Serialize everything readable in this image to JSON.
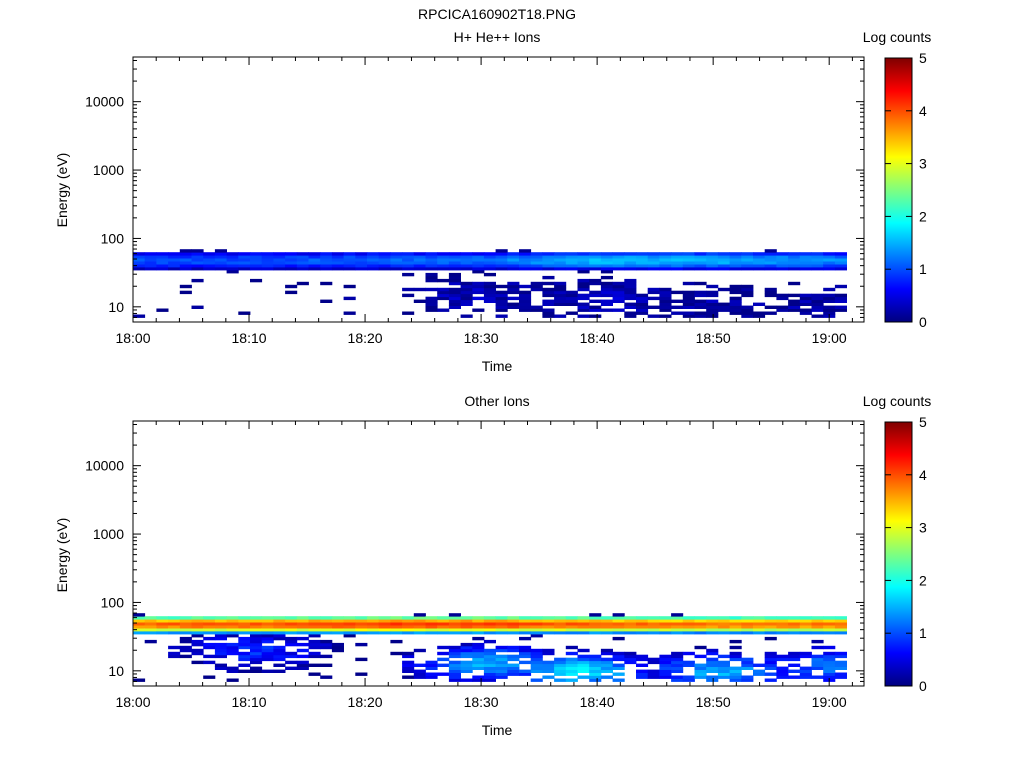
{
  "title": "RPCICA160902T18.PNG",
  "colors": {
    "colormap": [
      "#00007f",
      "#0000ff",
      "#007fff",
      "#00ffff",
      "#7fff7f",
      "#ffff00",
      "#ff7f00",
      "#ff0000",
      "#7f0000"
    ]
  },
  "chart_data": [
    {
      "type": "heatmap",
      "title": "H+ He++ Ions",
      "xlabel": "Time",
      "ylabel": "Energy (eV)",
      "xlim": [
        "18:00",
        "19:03"
      ],
      "ylim": [
        6,
        45000
      ],
      "yscale": "log",
      "x_ticks": [
        "18:00",
        "18:10",
        "18:20",
        "18:30",
        "18:40",
        "18:50",
        "19:00"
      ],
      "y_ticks": [
        "10",
        "100",
        "1000",
        "10000"
      ],
      "colorbar": {
        "label": "Log counts",
        "ticks": [
          "0",
          "1",
          "2",
          "3",
          "4",
          "5"
        ],
        "range": [
          0,
          5
        ]
      },
      "band_levels": [
        {
          "time": "18:00",
          "level": 1.0
        },
        {
          "time": "18:10",
          "level": 1.0
        },
        {
          "time": "18:20",
          "level": 1.1
        },
        {
          "time": "18:30",
          "level": 1.2
        },
        {
          "time": "18:40",
          "level": 1.6
        },
        {
          "time": "18:50",
          "level": 1.5
        },
        {
          "time": "19:00",
          "level": 1.3
        }
      ],
      "low_energy_patches": [
        {
          "time": "18:30",
          "energy": 15,
          "level": 0.3
        },
        {
          "time": "18:40",
          "energy": 13,
          "level": 0.3
        },
        {
          "time": "18:50",
          "energy": 10,
          "level": 0.2
        },
        {
          "time": "19:00",
          "energy": 10,
          "level": 0.2
        }
      ]
    },
    {
      "type": "heatmap",
      "title": "Other Ions",
      "xlabel": "Time",
      "ylabel": "Energy (eV)",
      "xlim": [
        "18:00",
        "19:03"
      ],
      "ylim": [
        6,
        45000
      ],
      "yscale": "log",
      "x_ticks": [
        "18:00",
        "18:10",
        "18:20",
        "18:30",
        "18:40",
        "18:50",
        "19:00"
      ],
      "y_ticks": [
        "10",
        "100",
        "1000",
        "10000"
      ],
      "colorbar": {
        "label": "Log counts",
        "ticks": [
          "0",
          "1",
          "2",
          "3",
          "4",
          "5"
        ],
        "range": [
          0,
          5
        ]
      },
      "band_levels": [
        {
          "time": "18:00",
          "level": 3.9
        },
        {
          "time": "18:10",
          "level": 4.0
        },
        {
          "time": "18:20",
          "level": 4.1
        },
        {
          "time": "18:30",
          "level": 4.1
        },
        {
          "time": "18:40",
          "level": 3.9
        },
        {
          "time": "18:50",
          "level": 3.8
        },
        {
          "time": "19:00",
          "level": 3.8
        }
      ],
      "low_energy_patches": [
        {
          "time": "18:10",
          "energy": 20,
          "level": 0.8
        },
        {
          "time": "18:30",
          "energy": 13,
          "level": 1.5
        },
        {
          "time": "18:38",
          "energy": 10,
          "level": 1.8
        },
        {
          "time": "18:50",
          "energy": 10,
          "level": 1.5
        },
        {
          "time": "19:00",
          "energy": 12,
          "level": 1.2
        }
      ]
    }
  ]
}
